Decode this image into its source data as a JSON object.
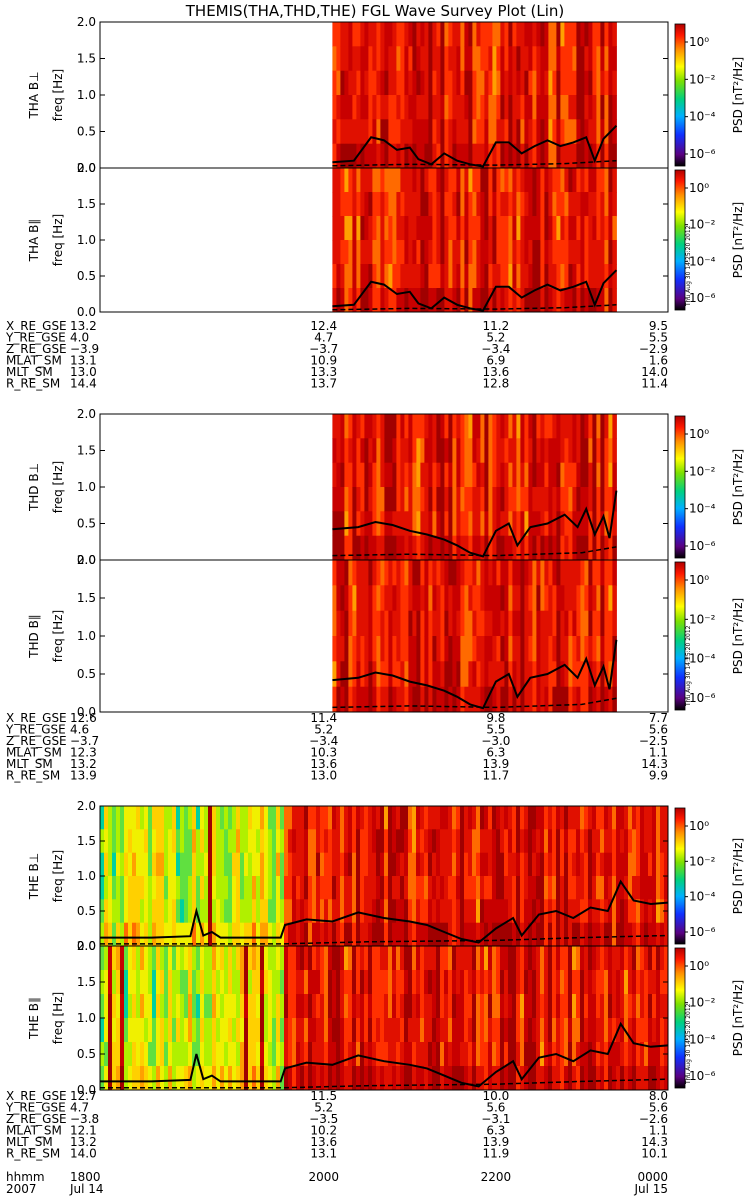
{
  "title": "THEMIS(THA,THD,THE) FGL Wave Survey Plot (Lin)",
  "chart_data": {
    "type": "heatmap",
    "x_time_range_hours": [
      17.4,
      24.0
    ],
    "ylim": [
      0,
      2.0
    ],
    "yticks": [
      "0.0",
      "0.5",
      "1.0",
      "1.5",
      "2.0"
    ],
    "ylabel": "freq [Hz]",
    "colorbar": {
      "label": "PSD [nT²/Hz]",
      "ticks": [
        "10⁰",
        "10⁻²",
        "10⁻⁴",
        "10⁻⁶"
      ],
      "stamp": "Thu Aug 30 14:25:20 2012"
    },
    "panels": [
      {
        "probe": "THA",
        "component": "B⊥",
        "label": "THA B⊥",
        "data_start": 20.1,
        "data_end": 23.4,
        "line_solid": [
          [
            20.1,
            0.08
          ],
          [
            20.35,
            0.1
          ],
          [
            20.55,
            0.42
          ],
          [
            20.7,
            0.38
          ],
          [
            20.85,
            0.25
          ],
          [
            21.0,
            0.28
          ],
          [
            21.1,
            0.12
          ],
          [
            21.25,
            0.05
          ],
          [
            21.4,
            0.2
          ],
          [
            21.55,
            0.1
          ],
          [
            21.7,
            0.05
          ],
          [
            21.85,
            0.02
          ],
          [
            22.0,
            0.35
          ],
          [
            22.15,
            0.35
          ],
          [
            22.3,
            0.2
          ],
          [
            22.45,
            0.3
          ],
          [
            22.6,
            0.38
          ],
          [
            22.75,
            0.3
          ],
          [
            22.9,
            0.35
          ],
          [
            23.05,
            0.42
          ],
          [
            23.15,
            0.1
          ],
          [
            23.25,
            0.4
          ],
          [
            23.4,
            0.58
          ]
        ],
        "line_dashed": [
          [
            20.1,
            0.03
          ],
          [
            21.0,
            0.05
          ],
          [
            22.0,
            0.04
          ],
          [
            22.8,
            0.06
          ],
          [
            23.4,
            0.1
          ]
        ]
      },
      {
        "probe": "THA",
        "component": "B∥",
        "label": "THA B∥",
        "data_start": 20.1,
        "data_end": 23.4,
        "line_solid": [
          [
            20.1,
            0.08
          ],
          [
            20.35,
            0.1
          ],
          [
            20.55,
            0.42
          ],
          [
            20.7,
            0.38
          ],
          [
            20.85,
            0.25
          ],
          [
            21.0,
            0.28
          ],
          [
            21.1,
            0.12
          ],
          [
            21.25,
            0.05
          ],
          [
            21.4,
            0.2
          ],
          [
            21.55,
            0.1
          ],
          [
            21.7,
            0.05
          ],
          [
            21.85,
            0.02
          ],
          [
            22.0,
            0.35
          ],
          [
            22.15,
            0.35
          ],
          [
            22.3,
            0.2
          ],
          [
            22.45,
            0.3
          ],
          [
            22.6,
            0.38
          ],
          [
            22.75,
            0.3
          ],
          [
            22.9,
            0.35
          ],
          [
            23.05,
            0.42
          ],
          [
            23.15,
            0.1
          ],
          [
            23.25,
            0.4
          ],
          [
            23.4,
            0.58
          ]
        ],
        "line_dashed": [
          [
            20.1,
            0.03
          ],
          [
            21.0,
            0.05
          ],
          [
            22.0,
            0.04
          ],
          [
            22.8,
            0.06
          ],
          [
            23.4,
            0.1
          ]
        ]
      },
      {
        "probe": "THD",
        "component": "B⊥",
        "label": "THD B⊥",
        "data_start": 20.1,
        "data_end": 23.4,
        "line_solid": [
          [
            20.1,
            0.42
          ],
          [
            20.4,
            0.45
          ],
          [
            20.6,
            0.52
          ],
          [
            20.8,
            0.48
          ],
          [
            21.0,
            0.4
          ],
          [
            21.2,
            0.35
          ],
          [
            21.4,
            0.28
          ],
          [
            21.55,
            0.2
          ],
          [
            21.7,
            0.1
          ],
          [
            21.85,
            0.05
          ],
          [
            22.0,
            0.4
          ],
          [
            22.15,
            0.5
          ],
          [
            22.25,
            0.2
          ],
          [
            22.4,
            0.45
          ],
          [
            22.6,
            0.5
          ],
          [
            22.8,
            0.62
          ],
          [
            22.95,
            0.45
          ],
          [
            23.05,
            0.7
          ],
          [
            23.15,
            0.35
          ],
          [
            23.25,
            0.6
          ],
          [
            23.32,
            0.3
          ],
          [
            23.4,
            0.95
          ]
        ],
        "line_dashed": [
          [
            20.1,
            0.06
          ],
          [
            21.0,
            0.08
          ],
          [
            22.0,
            0.06
          ],
          [
            23.0,
            0.1
          ],
          [
            23.4,
            0.18
          ]
        ]
      },
      {
        "probe": "THD",
        "component": "B∥",
        "label": "THD B∥",
        "data_start": 20.1,
        "data_end": 23.4,
        "line_solid": [
          [
            20.1,
            0.42
          ],
          [
            20.4,
            0.45
          ],
          [
            20.6,
            0.52
          ],
          [
            20.8,
            0.48
          ],
          [
            21.0,
            0.4
          ],
          [
            21.2,
            0.35
          ],
          [
            21.4,
            0.28
          ],
          [
            21.55,
            0.2
          ],
          [
            21.7,
            0.1
          ],
          [
            21.85,
            0.05
          ],
          [
            22.0,
            0.4
          ],
          [
            22.15,
            0.5
          ],
          [
            22.25,
            0.2
          ],
          [
            22.4,
            0.45
          ],
          [
            22.6,
            0.5
          ],
          [
            22.8,
            0.62
          ],
          [
            22.95,
            0.45
          ],
          [
            23.05,
            0.7
          ],
          [
            23.15,
            0.35
          ],
          [
            23.25,
            0.6
          ],
          [
            23.32,
            0.3
          ],
          [
            23.4,
            0.95
          ]
        ],
        "line_dashed": [
          [
            20.1,
            0.06
          ],
          [
            21.0,
            0.08
          ],
          [
            22.0,
            0.06
          ],
          [
            23.0,
            0.1
          ],
          [
            23.4,
            0.18
          ]
        ]
      },
      {
        "probe": "THE",
        "component": "B⊥",
        "label": "THE B⊥",
        "data_start": 17.4,
        "data_end": 24.0,
        "active_start": 19.5,
        "line_solid": [
          [
            17.4,
            0.12
          ],
          [
            18.0,
            0.12
          ],
          [
            18.45,
            0.14
          ],
          [
            18.52,
            0.5
          ],
          [
            18.6,
            0.15
          ],
          [
            18.7,
            0.2
          ],
          [
            18.8,
            0.12
          ],
          [
            19.5,
            0.12
          ],
          [
            19.55,
            0.3
          ],
          [
            19.8,
            0.38
          ],
          [
            20.1,
            0.35
          ],
          [
            20.4,
            0.48
          ],
          [
            20.7,
            0.4
          ],
          [
            21.0,
            0.35
          ],
          [
            21.2,
            0.3
          ],
          [
            21.4,
            0.2
          ],
          [
            21.6,
            0.1
          ],
          [
            21.8,
            0.05
          ],
          [
            22.0,
            0.25
          ],
          [
            22.2,
            0.4
          ],
          [
            22.3,
            0.15
          ],
          [
            22.5,
            0.45
          ],
          [
            22.7,
            0.5
          ],
          [
            22.9,
            0.4
          ],
          [
            23.1,
            0.55
          ],
          [
            23.3,
            0.5
          ],
          [
            23.45,
            0.92
          ],
          [
            23.6,
            0.65
          ],
          [
            23.8,
            0.6
          ],
          [
            24.0,
            0.62
          ]
        ],
        "line_dashed": [
          [
            17.4,
            0.03
          ],
          [
            19.5,
            0.03
          ],
          [
            20.5,
            0.06
          ],
          [
            22.0,
            0.08
          ],
          [
            23.0,
            0.12
          ],
          [
            24.0,
            0.15
          ]
        ]
      },
      {
        "probe": "THE",
        "component": "B∥",
        "label": "THE B∥",
        "data_start": 17.4,
        "data_end": 24.0,
        "active_start": 19.5,
        "line_solid": [
          [
            17.4,
            0.12
          ],
          [
            18.0,
            0.12
          ],
          [
            18.45,
            0.14
          ],
          [
            18.52,
            0.5
          ],
          [
            18.6,
            0.15
          ],
          [
            18.7,
            0.2
          ],
          [
            18.8,
            0.12
          ],
          [
            19.5,
            0.12
          ],
          [
            19.55,
            0.3
          ],
          [
            19.8,
            0.38
          ],
          [
            20.1,
            0.35
          ],
          [
            20.4,
            0.48
          ],
          [
            20.7,
            0.4
          ],
          [
            21.0,
            0.35
          ],
          [
            21.2,
            0.3
          ],
          [
            21.4,
            0.2
          ],
          [
            21.6,
            0.1
          ],
          [
            21.8,
            0.05
          ],
          [
            22.0,
            0.25
          ],
          [
            22.2,
            0.4
          ],
          [
            22.3,
            0.15
          ],
          [
            22.5,
            0.45
          ],
          [
            22.7,
            0.5
          ],
          [
            22.9,
            0.4
          ],
          [
            23.1,
            0.55
          ],
          [
            23.3,
            0.5
          ],
          [
            23.45,
            0.92
          ],
          [
            23.6,
            0.65
          ],
          [
            23.8,
            0.6
          ],
          [
            24.0,
            0.62
          ]
        ],
        "line_dashed": [
          [
            17.4,
            0.03
          ],
          [
            19.5,
            0.03
          ],
          [
            20.5,
            0.06
          ],
          [
            22.0,
            0.08
          ],
          [
            23.0,
            0.12
          ],
          [
            24.0,
            0.15
          ]
        ]
      }
    ],
    "ephemeris": [
      {
        "probe": "THA",
        "rows": [
          {
            "label": "X_RE_GSE",
            "values": [
              "13.2",
              "12.4",
              "11.2",
              "9.5"
            ]
          },
          {
            "label": "Y_RE_GSE",
            "values": [
              "4.0",
              "4.7",
              "5.2",
              "5.5"
            ]
          },
          {
            "label": "Z_RE_GSE",
            "values": [
              "−3.9",
              "−3.7",
              "−3.4",
              "−2.9"
            ]
          },
          {
            "label": "MLAT_SM",
            "values": [
              "13.1",
              "10.9",
              "6.9",
              "1.6"
            ]
          },
          {
            "label": "MLT_SM",
            "values": [
              "13.0",
              "13.3",
              "13.6",
              "14.0"
            ]
          },
          {
            "label": "R_RE_SM",
            "values": [
              "14.4",
              "13.7",
              "12.8",
              "11.4"
            ]
          }
        ]
      },
      {
        "probe": "THD",
        "rows": [
          {
            "label": "X_RE_GSE",
            "values": [
              "12.6",
              "11.4",
              "9.8",
              "7.7"
            ]
          },
          {
            "label": "Y_RE_GSE",
            "values": [
              "4.6",
              "5.2",
              "5.5",
              "5.6"
            ]
          },
          {
            "label": "Z_RE_GSE",
            "values": [
              "−3.7",
              "−3.4",
              "−3.0",
              "−2.5"
            ]
          },
          {
            "label": "MLAT_SM",
            "values": [
              "12.3",
              "10.3",
              "6.3",
              "1.1"
            ]
          },
          {
            "label": "MLT_SM",
            "values": [
              "13.2",
              "13.6",
              "13.9",
              "14.3"
            ]
          },
          {
            "label": "R_RE_SM",
            "values": [
              "13.9",
              "13.0",
              "11.7",
              "9.9"
            ]
          }
        ]
      },
      {
        "probe": "THE",
        "rows": [
          {
            "label": "X_RE_GSE",
            "values": [
              "12.7",
              "11.5",
              "10.0",
              "8.0"
            ]
          },
          {
            "label": "Y_RE_GSE",
            "values": [
              "4.7",
              "5.2",
              "5.6",
              "5.6"
            ]
          },
          {
            "label": "Z_RE_GSE",
            "values": [
              "−3.8",
              "−3.5",
              "−3.1",
              "−2.6"
            ]
          },
          {
            "label": "MLAT_SM",
            "values": [
              "12.1",
              "10.2",
              "6.3",
              "1.1"
            ]
          },
          {
            "label": "MLT_SM",
            "values": [
              "13.2",
              "13.6",
              "13.9",
              "14.3"
            ]
          },
          {
            "label": "R_RE_SM",
            "values": [
              "14.0",
              "13.1",
              "11.9",
              "10.1"
            ]
          }
        ]
      }
    ],
    "time_axis": {
      "label": "hhmm",
      "year": "2007",
      "ticks": [
        "1800",
        "2000",
        "2200",
        "0000"
      ],
      "dates": [
        "Jul 14",
        "",
        "",
        "Jul 15"
      ]
    }
  }
}
